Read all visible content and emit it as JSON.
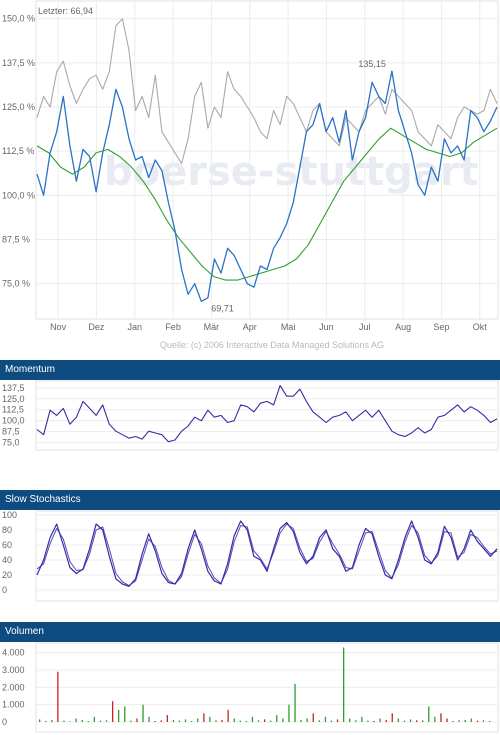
{
  "last_label": "Letzter: 66,94",
  "watermark": "boerse-stuttgart",
  "source": "Quelle: (c) 2006 Interactive Data Managed Solutions AG",
  "colors": {
    "price": "#2a73c6",
    "compare": "#a9a9a9",
    "average": "#2ea02e",
    "indicator": "#3a2aa6",
    "signal": "#4d4dbd",
    "volume_up": "#2e9e2e",
    "volume_down": "#cc2222",
    "header": "#0e4b80"
  },
  "panels": {
    "momentum": {
      "title": "Momentum"
    },
    "stochastics": {
      "title": "Slow Stochastics"
    },
    "volume": {
      "title": "Volumen"
    }
  },
  "chart_data": [
    {
      "type": "line",
      "x_ticks": [
        "Nov",
        "Dez",
        "Jan",
        "Feb",
        "Mär",
        "Apr",
        "Mai",
        "Jun",
        "Jul",
        "Aug",
        "Sep",
        "Okt"
      ],
      "y_ticks": [
        "150,0 %",
        "137,5 %",
        "125,0 %",
        "112,5 %",
        "100,0 %",
        "87,5 %",
        "75,0 %"
      ],
      "ylim": [
        65,
        155
      ],
      "annotations": [
        {
          "text": "135,15",
          "value": 135.15
        },
        {
          "text": "69,71",
          "value": 69.71
        }
      ],
      "series": [
        {
          "key": "price",
          "values": [
            106,
            100,
            112,
            118,
            128,
            114,
            104,
            113,
            111,
            101,
            112,
            120,
            130,
            125,
            116,
            110,
            111,
            105,
            110,
            107,
            98,
            90,
            79,
            72,
            75,
            70,
            71,
            82,
            78,
            85,
            83,
            79,
            75,
            74,
            80,
            79,
            85,
            88,
            92,
            98,
            108,
            118,
            120,
            126,
            118,
            122,
            115,
            124,
            110,
            118,
            122,
            132,
            128,
            126,
            135.15,
            124,
            118,
            112,
            103,
            100,
            108,
            104,
            116,
            112,
            114,
            110,
            124,
            122,
            118,
            121,
            125
          ],
          "markers": [
            {
              "value": 135.15,
              "annotation": "135,15"
            },
            {
              "value": 69.71,
              "annotation": "69,71"
            }
          ]
        },
        {
          "key": "compare",
          "values": [
            122,
            128,
            125,
            135,
            138,
            131,
            126,
            130,
            133,
            134,
            130,
            135,
            148,
            150,
            141,
            124,
            128,
            122,
            134,
            118,
            115,
            112,
            109,
            116,
            128,
            132,
            119,
            125,
            122,
            135,
            130,
            128,
            125,
            122,
            118,
            116,
            124,
            120,
            128,
            126,
            122,
            118,
            124,
            126,
            118,
            116,
            114,
            122,
            120,
            118,
            124,
            126,
            128,
            123,
            130,
            128,
            126,
            124,
            118,
            116,
            114,
            120,
            118,
            116,
            122,
            125,
            124,
            123,
            124,
            130,
            126
          ]
        },
        {
          "key": "average",
          "values": [
            114,
            112,
            108,
            106,
            108,
            112,
            113,
            111,
            108,
            104,
            99,
            93,
            88,
            84,
            80,
            77,
            76,
            76,
            77,
            78,
            79,
            80,
            82,
            86,
            92,
            98,
            104,
            108,
            112,
            116,
            119,
            117,
            115,
            113,
            112,
            111,
            112,
            115,
            117,
            119
          ]
        }
      ]
    },
    {
      "type": "line",
      "y_ticks": [
        "137,5",
        "125,0",
        "112,5",
        "100,0",
        "87,5",
        "75,0"
      ],
      "ylim": [
        70,
        143
      ],
      "series": [
        {
          "key": "momentum",
          "values": [
            90,
            84,
            112,
            106,
            114,
            96,
            104,
            122,
            114,
            106,
            118,
            96,
            88,
            84,
            80,
            82,
            79,
            88,
            86,
            84,
            76,
            78,
            88,
            94,
            104,
            100,
            112,
            104,
            106,
            98,
            100,
            118,
            116,
            110,
            120,
            122,
            118,
            140,
            128,
            128,
            136,
            122,
            110,
            104,
            98,
            104,
            106,
            110,
            100,
            106,
            112,
            104,
            112,
            100,
            88,
            84,
            82,
            86,
            92,
            86,
            90,
            104,
            106,
            112,
            118,
            110,
            116,
            112,
            106,
            98,
            102
          ]
        }
      ]
    },
    {
      "type": "line",
      "y_ticks": [
        "100",
        "80",
        "60",
        "40",
        "20",
        "0"
      ],
      "ylim": [
        0,
        100
      ],
      "series": [
        {
          "key": "slow_k",
          "values": [
            20,
            40,
            70,
            88,
            60,
            30,
            22,
            28,
            55,
            88,
            80,
            45,
            15,
            8,
            5,
            15,
            48,
            75,
            52,
            22,
            10,
            8,
            22,
            55,
            80,
            55,
            25,
            12,
            8,
            35,
            72,
            92,
            80,
            45,
            40,
            25,
            55,
            82,
            90,
            78,
            50,
            35,
            45,
            70,
            80,
            55,
            45,
            25,
            30,
            60,
            82,
            75,
            45,
            20,
            15,
            40,
            70,
            92,
            70,
            40,
            35,
            50,
            85,
            70,
            40,
            55,
            80,
            65,
            55,
            45,
            55
          ]
        },
        {
          "key": "slow_d",
          "values": [
            28,
            35,
            62,
            82,
            68,
            38,
            26,
            27,
            48,
            80,
            84,
            55,
            22,
            11,
            6,
            12,
            40,
            68,
            58,
            30,
            13,
            8,
            18,
            48,
            74,
            62,
            32,
            16,
            9,
            28,
            64,
            86,
            84,
            52,
            42,
            28,
            50,
            76,
            88,
            82,
            56,
            38,
            42,
            64,
            78,
            62,
            48,
            30,
            28,
            52,
            76,
            78,
            52,
            26,
            16,
            34,
            64,
            86,
            76,
            46,
            36,
            46,
            78,
            76,
            44,
            50,
            74,
            70,
            58,
            48,
            52
          ]
        }
      ]
    },
    {
      "type": "bar",
      "y_ticks": [
        "4.000",
        "3.000",
        "2.000",
        "1.000",
        "0"
      ],
      "ylim": [
        0,
        4500
      ],
      "values": [
        150,
        60,
        120,
        2900,
        80,
        40,
        200,
        120,
        60,
        300,
        80,
        100,
        1200,
        700,
        900,
        80,
        200,
        1000,
        300,
        60,
        100,
        400,
        120,
        80,
        150,
        60,
        200,
        500,
        300,
        100,
        120,
        700,
        200,
        80,
        60,
        300,
        100,
        150,
        80,
        400,
        200,
        1000,
        2200,
        120,
        200,
        500,
        100,
        300,
        80,
        150,
        4300,
        200,
        100,
        300,
        80,
        60,
        200,
        120,
        500,
        200,
        80,
        150,
        100,
        100,
        900,
        300,
        500,
        200,
        60,
        100,
        120,
        200,
        80,
        100,
        60
      ],
      "down": [
        3,
        12,
        16,
        19,
        20,
        21,
        27,
        30,
        31,
        37,
        45,
        49,
        55,
        57,
        58,
        62,
        66,
        67,
        72
      ]
    }
  ]
}
